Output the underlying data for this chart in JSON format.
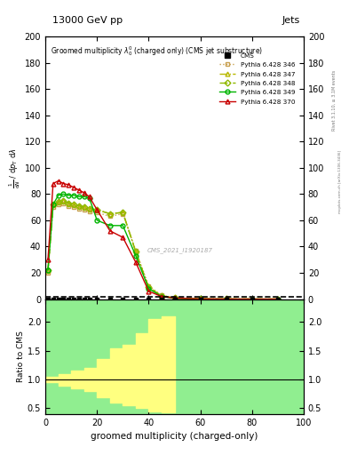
{
  "title_top": "13000 GeV pp",
  "title_right": "Jets",
  "plot_title": "Groomed multiplicity $\\lambda_0^0$ (charged only) (CMS jet substructure)",
  "xlabel": "groomed multiplicity (charged-only)",
  "ylabel_ratio": "Ratio to CMS",
  "watermark": "CMS_2021_I1920187",
  "rivet_label": "Rivet 3.1.10, ≥ 3.1M events",
  "mcplots_label": "mcplots.cern.ch [arXiv:1306.3436]",
  "xlim": [
    0,
    100
  ],
  "ylim_main": [
    0,
    200
  ],
  "ylim_ratio": [
    0.4,
    2.4
  ],
  "yticks_main": [
    0,
    20,
    40,
    60,
    80,
    100,
    120,
    140,
    160,
    180,
    200
  ],
  "yticks_ratio": [
    0.5,
    1.0,
    1.5,
    2.0
  ],
  "series": [
    {
      "label": "Pythia 6.428 346",
      "color": "#c8a050",
      "linestyle": "dotted",
      "marker": "s",
      "x": [
        1,
        3,
        5,
        7,
        9,
        11,
        13,
        15,
        17,
        20,
        25,
        30,
        35,
        40,
        45,
        50,
        60,
        70,
        80,
        90
      ],
      "y": [
        20,
        70,
        72,
        73,
        71,
        70,
        69,
        68,
        67,
        66,
        63,
        65,
        37,
        10,
        3,
        1,
        0.3,
        0.1,
        0.05,
        0.02
      ]
    },
    {
      "label": "Pythia 6.428 347",
      "color": "#b8b800",
      "linestyle": "dashdot",
      "marker": "^",
      "x": [
        1,
        3,
        5,
        7,
        9,
        11,
        13,
        15,
        17,
        20,
        25,
        30,
        35,
        40,
        45,
        50,
        60,
        70,
        80,
        90
      ],
      "y": [
        22,
        72,
        74,
        75,
        73,
        72,
        71,
        70,
        69,
        68,
        65,
        66,
        36,
        9,
        2.5,
        0.8,
        0.2,
        0.08,
        0.04,
        0.02
      ]
    },
    {
      "label": "Pythia 6.428 348",
      "color": "#90b800",
      "linestyle": "dashdot",
      "marker": "D",
      "x": [
        1,
        3,
        5,
        7,
        9,
        11,
        13,
        15,
        17,
        20,
        25,
        30,
        35,
        40,
        45,
        50,
        60,
        70,
        80,
        90
      ],
      "y": [
        22,
        72,
        74,
        75,
        73,
        72,
        71,
        70,
        69,
        68,
        65,
        66,
        36,
        9,
        2.5,
        0.8,
        0.2,
        0.08,
        0.04,
        0.02
      ]
    },
    {
      "label": "Pythia 6.428 349",
      "color": "#00b400",
      "linestyle": "solid",
      "marker": "o",
      "x": [
        1,
        3,
        5,
        7,
        9,
        11,
        13,
        15,
        17,
        20,
        25,
        30,
        35,
        40,
        45,
        50,
        60,
        70,
        80,
        90
      ],
      "y": [
        22,
        72,
        79,
        80,
        79,
        79,
        78,
        78,
        77,
        60,
        56,
        56,
        33,
        8,
        2,
        0.5,
        0.1,
        0.05,
        0.03,
        0.02
      ]
    },
    {
      "label": "Pythia 6.428 370",
      "color": "#c80000",
      "linestyle": "solid",
      "marker": "^",
      "x": [
        1,
        3,
        5,
        7,
        9,
        11,
        13,
        15,
        17,
        20,
        25,
        30,
        35,
        40,
        45,
        50,
        60,
        70,
        80,
        90
      ],
      "y": [
        30,
        88,
        90,
        88,
        87,
        85,
        83,
        81,
        78,
        68,
        52,
        47,
        28,
        6,
        2,
        0.8,
        0.2,
        0.08,
        0.03,
        0.02
      ]
    }
  ],
  "cms_x": [
    1,
    3,
    5,
    7,
    9,
    11,
    13,
    15,
    17,
    20,
    25,
    30,
    35,
    40,
    45,
    50,
    60,
    70,
    80,
    90
  ],
  "cms_y": [
    0,
    0,
    0,
    0,
    0,
    0,
    0,
    0,
    0,
    0,
    0,
    0,
    0,
    0,
    0,
    0,
    0,
    0,
    0,
    0
  ],
  "ratio_yellow_steps": {
    "edges": [
      0,
      5,
      10,
      15,
      20,
      25,
      30,
      35,
      40,
      45,
      50
    ],
    "y_lo": [
      0.95,
      0.9,
      0.85,
      0.8,
      0.7,
      0.6,
      0.55,
      0.5,
      0.45,
      0.43
    ],
    "y_hi": [
      1.05,
      1.1,
      1.15,
      1.2,
      1.35,
      1.55,
      1.6,
      1.8,
      2.05,
      2.1
    ]
  }
}
